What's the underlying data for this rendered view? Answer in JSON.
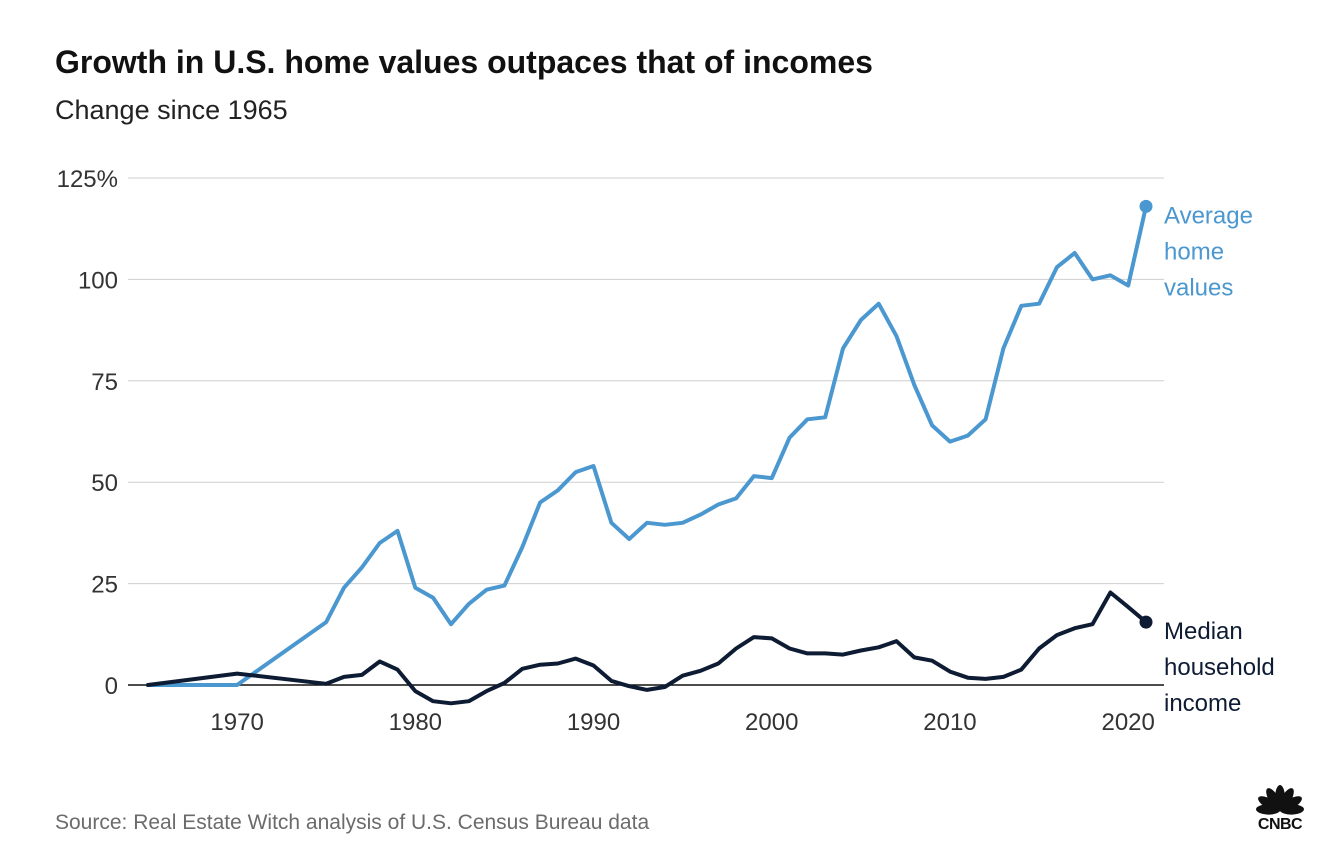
{
  "title": "Growth in U.S. home values outpaces that of incomes",
  "subtitle": "Change since 1965",
  "source": "Source: Real Estate Witch analysis of U.S. Census Bureau data",
  "logo_text": "CNBC",
  "colors": {
    "home_values": "#4b97d0",
    "household_income": "#0d1b33",
    "grid": "#cfcfcf",
    "tick_text": "#333333"
  },
  "chart_data": {
    "type": "line",
    "xlim": [
      1965,
      2021
    ],
    "ylim": [
      0,
      125
    ],
    "x_ticks": [
      1970,
      1980,
      1990,
      2000,
      2010,
      2020
    ],
    "y_ticks": [
      {
        "value": 125,
        "label": "125%"
      },
      {
        "value": 100,
        "label": "100"
      },
      {
        "value": 75,
        "label": "75"
      },
      {
        "value": 50,
        "label": "50"
      },
      {
        "value": 25,
        "label": "25"
      },
      {
        "value": 0,
        "label": "0"
      }
    ],
    "grid": true,
    "series": [
      {
        "name": "Average home values",
        "label_lines": [
          "Average",
          "home",
          "values"
        ],
        "color": "#4b97d0",
        "x": [
          1965,
          1970,
          1975,
          1976,
          1977,
          1978,
          1979,
          1980,
          1981,
          1982,
          1983,
          1984,
          1985,
          1986,
          1987,
          1988,
          1989,
          1990,
          1991,
          1992,
          1993,
          1994,
          1995,
          1996,
          1997,
          1998,
          1999,
          2000,
          2001,
          2002,
          2003,
          2004,
          2005,
          2006,
          2007,
          2008,
          2009,
          2010,
          2011,
          2012,
          2013,
          2014,
          2015,
          2016,
          2017,
          2018,
          2019,
          2020,
          2021
        ],
        "values": [
          0,
          0,
          15.5,
          24,
          29,
          35,
          38,
          24,
          21.5,
          15,
          20,
          23.5,
          24.5,
          34,
          45,
          48,
          52.5,
          54,
          40,
          36,
          40,
          39.5,
          40,
          42,
          44.5,
          46,
          51.5,
          51,
          61,
          65.5,
          66,
          83,
          90,
          94,
          86,
          74,
          64,
          60,
          61.5,
          65.5,
          83,
          93.5,
          94,
          103,
          106.5,
          100,
          101,
          98.5,
          118
        ]
      },
      {
        "name": "Median household income",
        "label_lines": [
          "Median",
          "household",
          "income"
        ],
        "color": "#0d1b33",
        "x": [
          1965,
          1970,
          1975,
          1976,
          1977,
          1978,
          1979,
          1980,
          1981,
          1982,
          1983,
          1984,
          1985,
          1986,
          1987,
          1988,
          1989,
          1990,
          1991,
          1992,
          1993,
          1994,
          1995,
          1996,
          1997,
          1998,
          1999,
          2000,
          2001,
          2002,
          2003,
          2004,
          2005,
          2006,
          2007,
          2008,
          2009,
          2010,
          2011,
          2012,
          2013,
          2014,
          2015,
          2016,
          2017,
          2018,
          2019,
          2020,
          2021
        ],
        "values": [
          0,
          2.8,
          0.3,
          2,
          2.5,
          5.8,
          3.8,
          -1.5,
          -4,
          -4.5,
          -4,
          -1.5,
          0.5,
          4,
          5,
          5.3,
          6.5,
          4.8,
          1,
          -0.3,
          -1.2,
          -0.5,
          2.3,
          3.5,
          5.3,
          9,
          11.8,
          11.5,
          9,
          7.8,
          7.8,
          7.5,
          8.5,
          9.3,
          10.8,
          6.8,
          6,
          3.3,
          1.8,
          1.5,
          2,
          3.8,
          9,
          12.3,
          14,
          15,
          22.8,
          19.2,
          15.5
        ]
      }
    ]
  }
}
